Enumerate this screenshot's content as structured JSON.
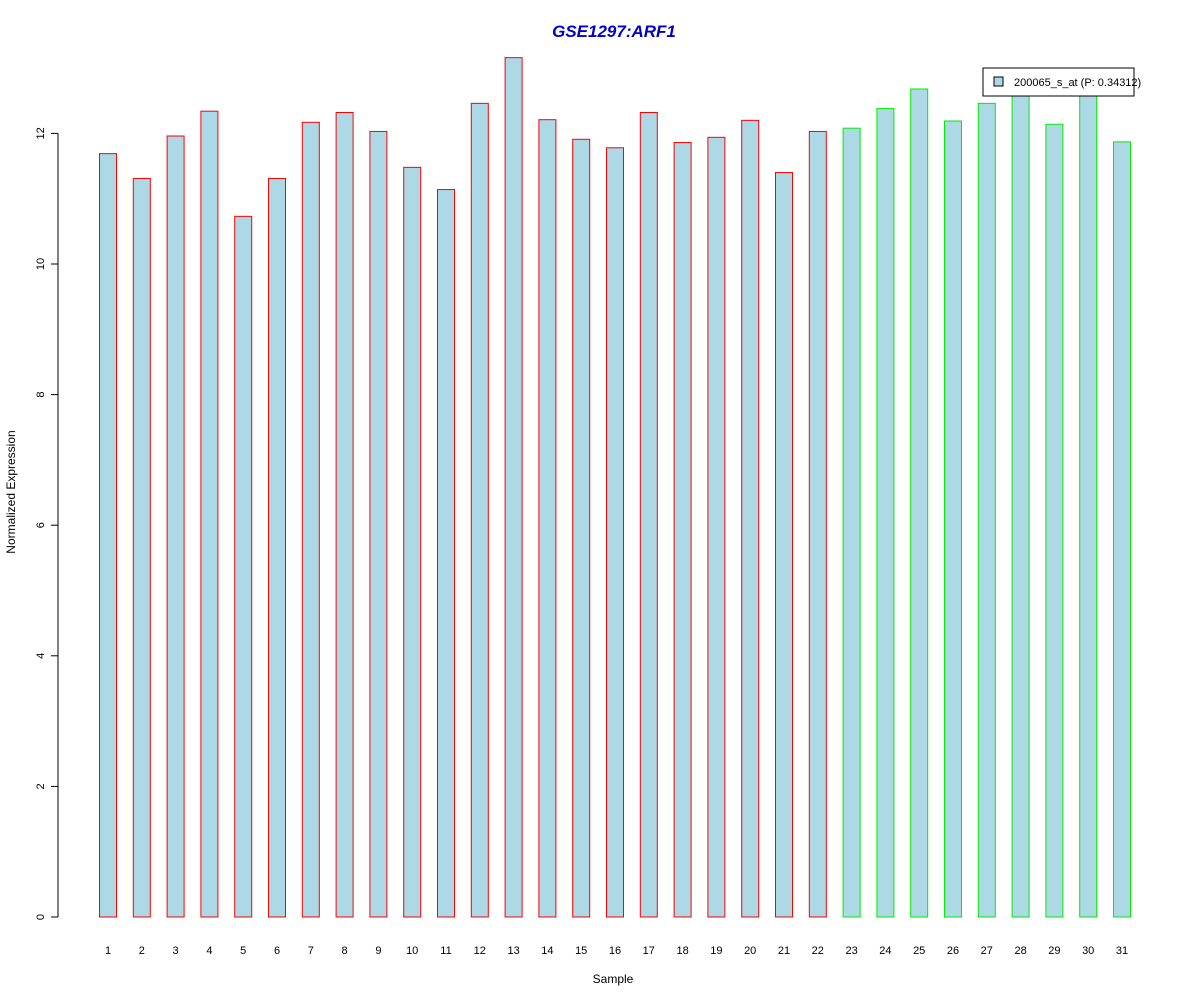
{
  "chart_data": {
    "type": "bar",
    "title": "GSE1297:ARF1",
    "xlabel": "Sample",
    "ylabel": "Normalized Expression",
    "ylim": [
      0,
      13.2
    ],
    "yticks": [
      0,
      2,
      4,
      6,
      8,
      10,
      12
    ],
    "grid": false,
    "legend_position": "top-right",
    "categories": [
      "1",
      "2",
      "3",
      "4",
      "5",
      "6",
      "7",
      "8",
      "9",
      "10",
      "11",
      "12",
      "13",
      "14",
      "15",
      "16",
      "17",
      "18",
      "19",
      "20",
      "21",
      "22",
      "23",
      "24",
      "25",
      "26",
      "27",
      "28",
      "29",
      "30",
      "31"
    ],
    "series": [
      {
        "name": "200065_s_at (P: 0.34312)",
        "values": [
          11.69,
          11.31,
          11.96,
          12.34,
          10.73,
          11.31,
          12.17,
          12.32,
          12.03,
          11.48,
          11.14,
          12.46,
          13.16,
          12.21,
          11.91,
          11.78,
          12.32,
          11.86,
          11.94,
          12.2,
          11.4,
          12.03,
          12.08,
          12.38,
          12.68,
          12.19,
          12.46,
          12.63,
          12.14,
          12.63,
          11.87
        ]
      }
    ],
    "bar_fill": "#add8e6",
    "group_colors": [
      "#ff0000",
      "#00ee00"
    ],
    "group_sizes": [
      22,
      9
    ],
    "title_color": "#0000cc"
  }
}
